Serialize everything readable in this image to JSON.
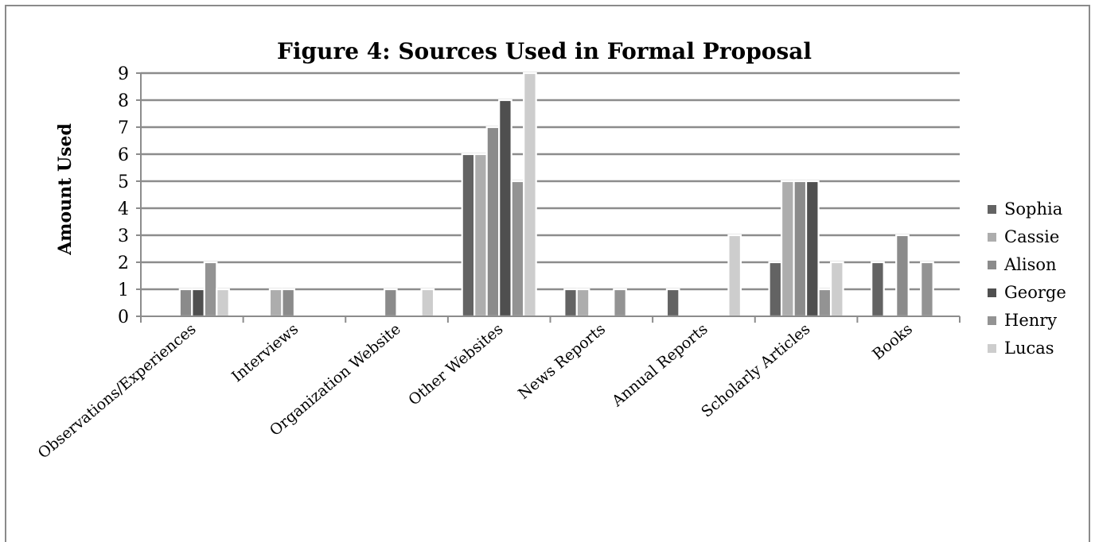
{
  "chart_data": {
    "type": "bar",
    "title": "Figure 4: Sources Used in Formal Proposal",
    "xlabel": "",
    "ylabel": "Amount Used",
    "ylim": [
      0,
      9
    ],
    "yticks": [
      "0",
      "1",
      "2",
      "3",
      "4",
      "5",
      "6",
      "7",
      "8",
      "9"
    ],
    "grid": true,
    "legend_position": "right",
    "categories": [
      "Observations/Experiences",
      "Interviews",
      "Organization Website",
      "Other Websites",
      "News Reports",
      "Annual Reports",
      "Scholarly Articles",
      "Books"
    ],
    "series": [
      {
        "name": "Sophia",
        "color": "#636363",
        "values": [
          0,
          0,
          0,
          6,
          1,
          1,
          2,
          2
        ]
      },
      {
        "name": "Cassie",
        "color": "#adadad",
        "values": [
          0,
          1,
          0,
          6,
          1,
          0,
          5,
          0
        ]
      },
      {
        "name": "Alison",
        "color": "#8b8b8b",
        "values": [
          1,
          1,
          1,
          7,
          0,
          0,
          5,
          3
        ]
      },
      {
        "name": "George",
        "color": "#4f4f4f",
        "values": [
          1,
          0,
          0,
          8,
          0,
          0,
          5,
          0
        ]
      },
      {
        "name": "Henry",
        "color": "#939393",
        "values": [
          2,
          0,
          0,
          5,
          1,
          0,
          1,
          2
        ]
      },
      {
        "name": "Lucas",
        "color": "#cdcdcd",
        "values": [
          1,
          0,
          1,
          9,
          0,
          3,
          2,
          0
        ]
      }
    ]
  }
}
